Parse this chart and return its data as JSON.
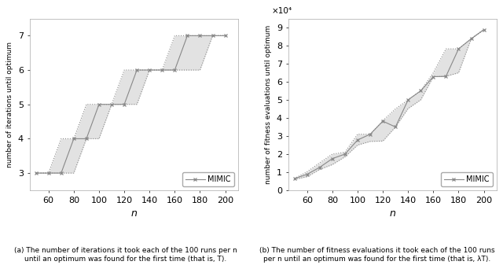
{
  "left_n": [
    50,
    60,
    70,
    80,
    90,
    100,
    110,
    120,
    130,
    140,
    150,
    160,
    170,
    180,
    190,
    200
  ],
  "left_med": [
    3,
    3,
    3,
    4,
    4,
    5,
    5,
    5,
    6,
    6,
    6,
    6,
    7,
    7,
    7,
    7
  ],
  "left_lo": [
    3,
    3,
    3,
    3,
    4,
    4,
    5,
    5,
    5,
    6,
    6,
    6,
    6,
    6,
    7,
    7
  ],
  "left_hi": [
    3,
    3,
    4,
    4,
    5,
    5,
    5,
    6,
    6,
    6,
    6,
    7,
    7,
    7,
    7,
    7
  ],
  "right_n": [
    50,
    60,
    70,
    80,
    90,
    100,
    110,
    120,
    130,
    140,
    150,
    160,
    170,
    180,
    190,
    200
  ],
  "right_med": [
    0.65,
    0.88,
    1.27,
    1.75,
    2.0,
    2.78,
    3.1,
    3.82,
    3.5,
    5.0,
    5.5,
    6.28,
    6.3,
    7.82,
    8.38,
    8.88
  ],
  "right_lo": [
    0.6,
    0.75,
    1.15,
    1.42,
    1.85,
    2.5,
    2.7,
    2.72,
    3.5,
    4.52,
    5.0,
    6.28,
    6.3,
    6.5,
    8.38,
    8.88
  ],
  "right_hi": [
    0.65,
    1.02,
    1.52,
    2.0,
    2.1,
    3.1,
    3.1,
    3.85,
    4.5,
    5.0,
    5.5,
    6.5,
    7.82,
    7.82,
    8.38,
    8.88
  ],
  "left_ylabel": "number of iterations until optimum",
  "right_ylabel": "number of fitness evaluations until optimum",
  "xlabel": "n",
  "xticks": [
    60,
    80,
    100,
    120,
    140,
    160,
    180,
    200
  ],
  "xlim": [
    45,
    210
  ],
  "left_ylim": [
    2.5,
    7.5
  ],
  "left_yticks": [
    3,
    4,
    5,
    6,
    7
  ],
  "right_ylim": [
    0,
    9.5
  ],
  "right_yticks": [
    0,
    1,
    2,
    3,
    4,
    5,
    6,
    7,
    8,
    9
  ],
  "line_color": "#888888",
  "fill_color": "#e2e2e2",
  "marker": "x",
  "legend_label": "MIMIC",
  "scale_text": "×10⁴",
  "caption_a": "(a) The number of iterations it took each of the 100 runs per n\nuntil an optimum was found for the first time (that is, T).",
  "caption_b": "(b) The number of fitness evaluations it took each of the 100 runs\nper n until an optimum was found for the first time (that is, λT)."
}
